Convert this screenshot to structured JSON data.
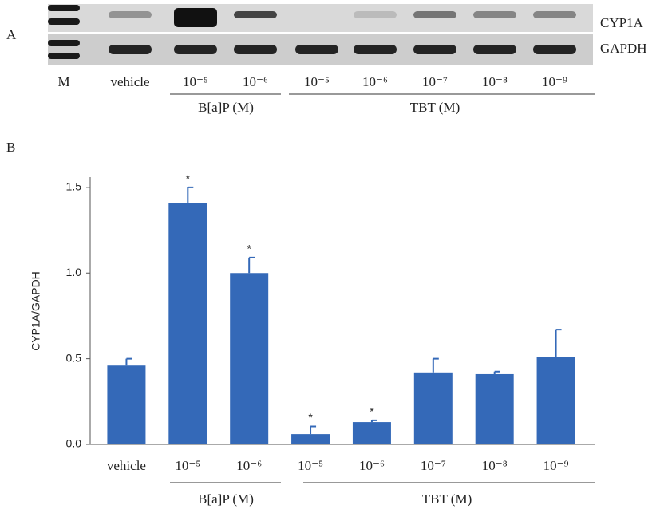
{
  "panel_a": {
    "label": "A",
    "rows": [
      "CYP1A",
      "GAPDH"
    ],
    "lanes": [
      "M",
      "vehicle",
      "10⁻⁵",
      "10⁻⁶",
      "10⁻⁵",
      "10⁻⁶",
      "10⁻⁷",
      "10⁻⁸",
      "10⁻⁹"
    ],
    "groups": [
      "B[a]P (M)",
      "TBT (M)"
    ]
  },
  "chart_data": {
    "type": "bar",
    "label": "B",
    "ylabel": "CYP1A/GAPDH",
    "categories": [
      "vehicle",
      "10⁻⁵",
      "10⁻⁶",
      "10⁻⁵",
      "10⁻⁶",
      "10⁻⁷",
      "10⁻⁸",
      "10⁻⁹"
    ],
    "values": [
      0.46,
      1.41,
      1.0,
      0.06,
      0.13,
      0.42,
      0.41,
      0.51
    ],
    "errors": [
      0.04,
      0.09,
      0.09,
      0.045,
      0.01,
      0.08,
      0.015,
      0.16
    ],
    "significance": [
      null,
      "*",
      "*",
      "*",
      "*",
      null,
      null,
      null
    ],
    "groups": [
      "B[a]P (M)",
      "TBT (M)"
    ],
    "color": "#3469b8",
    "ylim": [
      0,
      1.56
    ],
    "yticks": [
      {
        "value": 0,
        "label": "0.0"
      },
      {
        "value": 0.5,
        "label": "0.5"
      },
      {
        "value": 1,
        "label": "1.0"
      },
      {
        "value": 1.5,
        "label": "1.5"
      }
    ]
  }
}
